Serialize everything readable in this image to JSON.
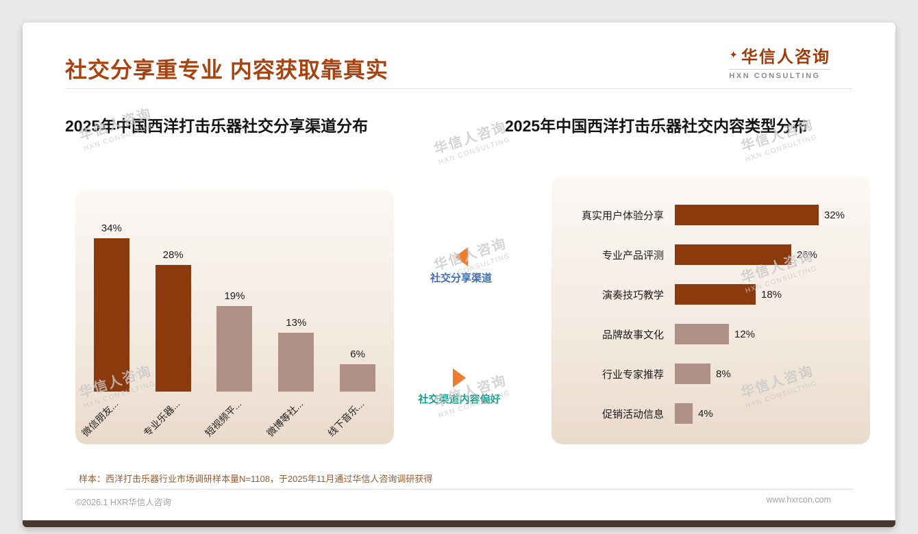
{
  "header": {
    "title": "社交分享重专业 内容获取靠真实",
    "logo": {
      "name_cn": "华信人咨询",
      "name_en": "HXN CONSULTING"
    }
  },
  "watermark": {
    "line1": "华信人咨询",
    "line2": "HXN CONSULTING"
  },
  "theme": {
    "accent": "#A8430F",
    "bar_dark": "#8B3A0E",
    "bar_light": "#AF9087",
    "note": "#9A5B30",
    "strip": "#46382E",
    "arrow": "#ED7D31"
  },
  "annotations": {
    "share_channel": {
      "label": "社交分享渠道",
      "color": "#3E6CB5"
    },
    "content_pref": {
      "label": "社交渠道内容偏好",
      "color": "#16A08E"
    },
    "arrow_color": "#ED7D31"
  },
  "chart_data": [
    {
      "type": "bar",
      "orientation": "vertical",
      "title": "2025年中国西洋打击乐器社交分享渠道分布",
      "categories": [
        "微信朋友...",
        "专业乐器...",
        "短视频平...",
        "微博等社...",
        "线下音乐..."
      ],
      "values": [
        34,
        28,
        19,
        13,
        6
      ],
      "unit": "%",
      "ylim": [
        0,
        40
      ],
      "grid": false,
      "colors": [
        "#8B3A0E",
        "#8B3A0E",
        "#AF9087",
        "#AF9087",
        "#AF9087"
      ]
    },
    {
      "type": "bar",
      "orientation": "horizontal",
      "title": "2025年中国西洋打击乐器社交内容类型分布",
      "categories": [
        "真实用户体验分享",
        "专业产品评测",
        "演奏技巧教学",
        "品牌故事文化",
        "行业专家推荐",
        "促销活动信息"
      ],
      "values": [
        32,
        26,
        18,
        12,
        8,
        4
      ],
      "unit": "%",
      "xlim": [
        0,
        35
      ],
      "grid": false,
      "colors": [
        "#8B3A0E",
        "#8B3A0E",
        "#8B3A0E",
        "#AF9087",
        "#AF9087",
        "#AF9087"
      ]
    }
  ],
  "footnote": "样本：西洋打击乐器行业市场调研样本量N=1108，于2025年11月通过华信人咨询调研获得",
  "footer": {
    "left": "©2026.1 HXR华信人咨询",
    "right": "www.hxrcon.com"
  }
}
